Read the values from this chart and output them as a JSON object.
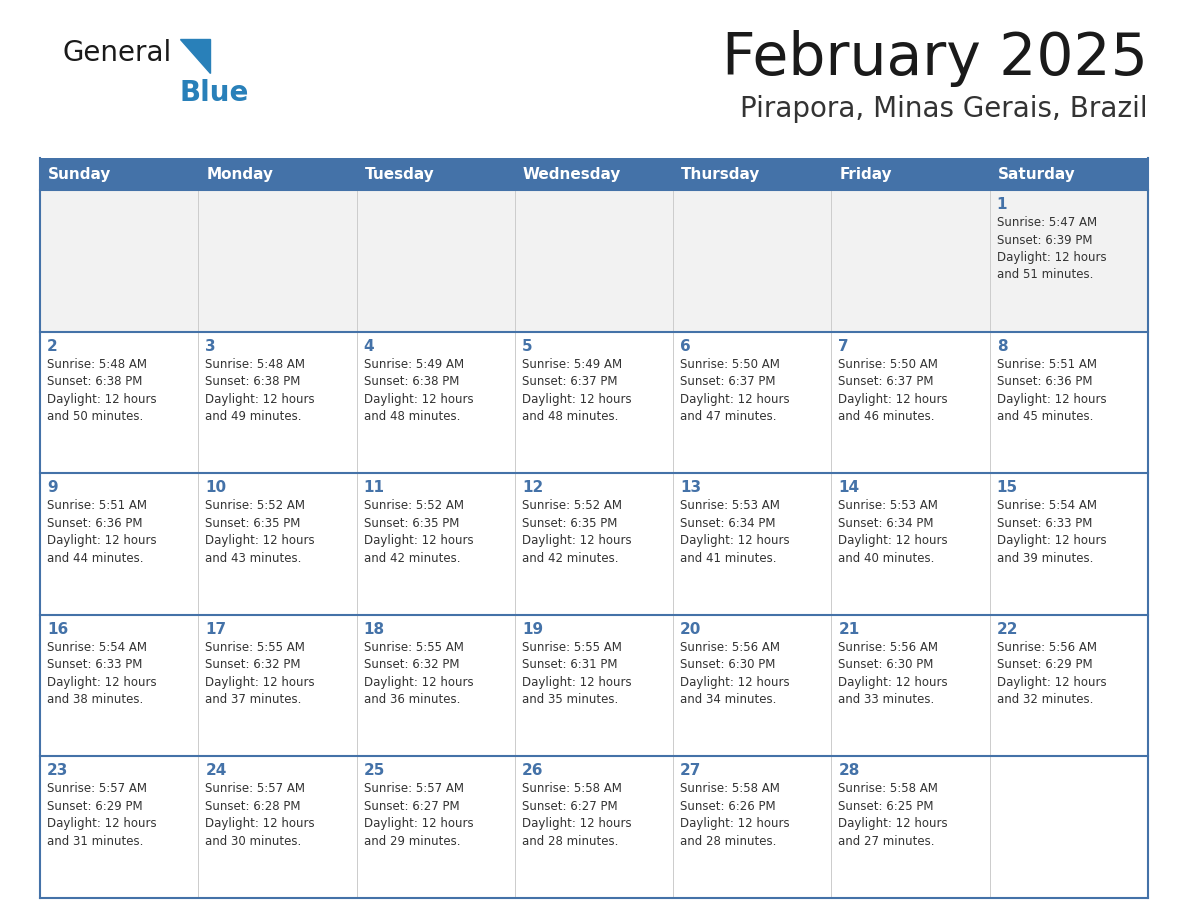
{
  "title": "February 2025",
  "subtitle": "Pirapora, Minas Gerais, Brazil",
  "header_color": "#4472A8",
  "header_text_color": "#FFFFFF",
  "cell_bg_week1": "#F2F2F2",
  "cell_bg_other": "#FFFFFF",
  "day_headers": [
    "Sunday",
    "Monday",
    "Tuesday",
    "Wednesday",
    "Thursday",
    "Friday",
    "Saturday"
  ],
  "title_color": "#1a1a1a",
  "subtitle_color": "#333333",
  "day_number_color": "#4472A8",
  "info_text_color": "#333333",
  "border_color": "#4472A8",
  "logo_general_color": "#1a1a1a",
  "logo_blue_color": "#2980B9",
  "logo_triangle_color": "#2980B9",
  "weeks": [
    [
      {
        "day": 0,
        "info": ""
      },
      {
        "day": 0,
        "info": ""
      },
      {
        "day": 0,
        "info": ""
      },
      {
        "day": 0,
        "info": ""
      },
      {
        "day": 0,
        "info": ""
      },
      {
        "day": 0,
        "info": ""
      },
      {
        "day": 1,
        "info": "Sunrise: 5:47 AM\nSunset: 6:39 PM\nDaylight: 12 hours\nand 51 minutes."
      }
    ],
    [
      {
        "day": 2,
        "info": "Sunrise: 5:48 AM\nSunset: 6:38 PM\nDaylight: 12 hours\nand 50 minutes."
      },
      {
        "day": 3,
        "info": "Sunrise: 5:48 AM\nSunset: 6:38 PM\nDaylight: 12 hours\nand 49 minutes."
      },
      {
        "day": 4,
        "info": "Sunrise: 5:49 AM\nSunset: 6:38 PM\nDaylight: 12 hours\nand 48 minutes."
      },
      {
        "day": 5,
        "info": "Sunrise: 5:49 AM\nSunset: 6:37 PM\nDaylight: 12 hours\nand 48 minutes."
      },
      {
        "day": 6,
        "info": "Sunrise: 5:50 AM\nSunset: 6:37 PM\nDaylight: 12 hours\nand 47 minutes."
      },
      {
        "day": 7,
        "info": "Sunrise: 5:50 AM\nSunset: 6:37 PM\nDaylight: 12 hours\nand 46 minutes."
      },
      {
        "day": 8,
        "info": "Sunrise: 5:51 AM\nSunset: 6:36 PM\nDaylight: 12 hours\nand 45 minutes."
      }
    ],
    [
      {
        "day": 9,
        "info": "Sunrise: 5:51 AM\nSunset: 6:36 PM\nDaylight: 12 hours\nand 44 minutes."
      },
      {
        "day": 10,
        "info": "Sunrise: 5:52 AM\nSunset: 6:35 PM\nDaylight: 12 hours\nand 43 minutes."
      },
      {
        "day": 11,
        "info": "Sunrise: 5:52 AM\nSunset: 6:35 PM\nDaylight: 12 hours\nand 42 minutes."
      },
      {
        "day": 12,
        "info": "Sunrise: 5:52 AM\nSunset: 6:35 PM\nDaylight: 12 hours\nand 42 minutes."
      },
      {
        "day": 13,
        "info": "Sunrise: 5:53 AM\nSunset: 6:34 PM\nDaylight: 12 hours\nand 41 minutes."
      },
      {
        "day": 14,
        "info": "Sunrise: 5:53 AM\nSunset: 6:34 PM\nDaylight: 12 hours\nand 40 minutes."
      },
      {
        "day": 15,
        "info": "Sunrise: 5:54 AM\nSunset: 6:33 PM\nDaylight: 12 hours\nand 39 minutes."
      }
    ],
    [
      {
        "day": 16,
        "info": "Sunrise: 5:54 AM\nSunset: 6:33 PM\nDaylight: 12 hours\nand 38 minutes."
      },
      {
        "day": 17,
        "info": "Sunrise: 5:55 AM\nSunset: 6:32 PM\nDaylight: 12 hours\nand 37 minutes."
      },
      {
        "day": 18,
        "info": "Sunrise: 5:55 AM\nSunset: 6:32 PM\nDaylight: 12 hours\nand 36 minutes."
      },
      {
        "day": 19,
        "info": "Sunrise: 5:55 AM\nSunset: 6:31 PM\nDaylight: 12 hours\nand 35 minutes."
      },
      {
        "day": 20,
        "info": "Sunrise: 5:56 AM\nSunset: 6:30 PM\nDaylight: 12 hours\nand 34 minutes."
      },
      {
        "day": 21,
        "info": "Sunrise: 5:56 AM\nSunset: 6:30 PM\nDaylight: 12 hours\nand 33 minutes."
      },
      {
        "day": 22,
        "info": "Sunrise: 5:56 AM\nSunset: 6:29 PM\nDaylight: 12 hours\nand 32 minutes."
      }
    ],
    [
      {
        "day": 23,
        "info": "Sunrise: 5:57 AM\nSunset: 6:29 PM\nDaylight: 12 hours\nand 31 minutes."
      },
      {
        "day": 24,
        "info": "Sunrise: 5:57 AM\nSunset: 6:28 PM\nDaylight: 12 hours\nand 30 minutes."
      },
      {
        "day": 25,
        "info": "Sunrise: 5:57 AM\nSunset: 6:27 PM\nDaylight: 12 hours\nand 29 minutes."
      },
      {
        "day": 26,
        "info": "Sunrise: 5:58 AM\nSunset: 6:27 PM\nDaylight: 12 hours\nand 28 minutes."
      },
      {
        "day": 27,
        "info": "Sunrise: 5:58 AM\nSunset: 6:26 PM\nDaylight: 12 hours\nand 28 minutes."
      },
      {
        "day": 28,
        "info": "Sunrise: 5:58 AM\nSunset: 6:25 PM\nDaylight: 12 hours\nand 27 minutes."
      },
      {
        "day": 0,
        "info": ""
      }
    ]
  ]
}
